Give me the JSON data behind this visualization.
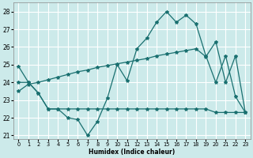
{
  "xlabel": "Humidex (Indice chaleur)",
  "bg_color": "#cceaea",
  "grid_color": "#ffffff",
  "line_color": "#1a7070",
  "xlim": [
    -0.5,
    23.5
  ],
  "ylim": [
    20.8,
    28.5
  ],
  "yticks": [
    21,
    22,
    23,
    24,
    25,
    26,
    27,
    28
  ],
  "xticks": [
    0,
    1,
    2,
    3,
    4,
    5,
    6,
    7,
    8,
    9,
    10,
    11,
    12,
    13,
    14,
    15,
    16,
    17,
    18,
    19,
    20,
    21,
    22,
    23
  ],
  "line1_x": [
    0,
    1,
    2,
    3,
    4,
    5,
    6,
    7,
    8,
    9,
    10,
    11,
    12,
    13,
    14,
    15,
    16,
    17,
    18,
    19,
    20,
    21,
    22,
    23
  ],
  "line1_y": [
    24.9,
    24.0,
    23.4,
    22.5,
    22.5,
    22.0,
    21.9,
    21.0,
    21.8,
    23.1,
    25.0,
    24.1,
    25.9,
    26.5,
    27.4,
    28.0,
    27.4,
    27.8,
    27.3,
    25.5,
    24.0,
    25.5,
    23.2,
    22.3
  ],
  "line2_x": [
    0,
    1,
    2,
    3,
    4,
    5,
    6,
    7,
    8,
    9,
    10,
    11,
    12,
    13,
    14,
    15,
    16,
    17,
    18,
    19,
    20,
    21,
    22,
    23
  ],
  "line2_y": [
    23.5,
    23.9,
    24.0,
    24.15,
    24.3,
    24.45,
    24.6,
    24.7,
    24.85,
    24.95,
    25.05,
    25.15,
    25.25,
    25.35,
    25.5,
    25.6,
    25.7,
    25.8,
    25.9,
    25.45,
    26.3,
    24.0,
    25.5,
    22.3
  ],
  "line3_x": [
    0,
    1,
    2,
    3,
    4,
    5,
    6,
    7,
    8,
    9,
    10,
    11,
    12,
    13,
    14,
    15,
    16,
    17,
    18,
    19,
    20,
    21,
    22,
    23
  ],
  "line3_y": [
    24.0,
    24.0,
    23.4,
    22.5,
    22.5,
    22.5,
    22.5,
    22.5,
    22.5,
    22.5,
    22.5,
    22.5,
    22.5,
    22.5,
    22.5,
    22.5,
    22.5,
    22.5,
    22.5,
    22.5,
    22.3,
    22.3,
    22.3,
    22.3
  ]
}
